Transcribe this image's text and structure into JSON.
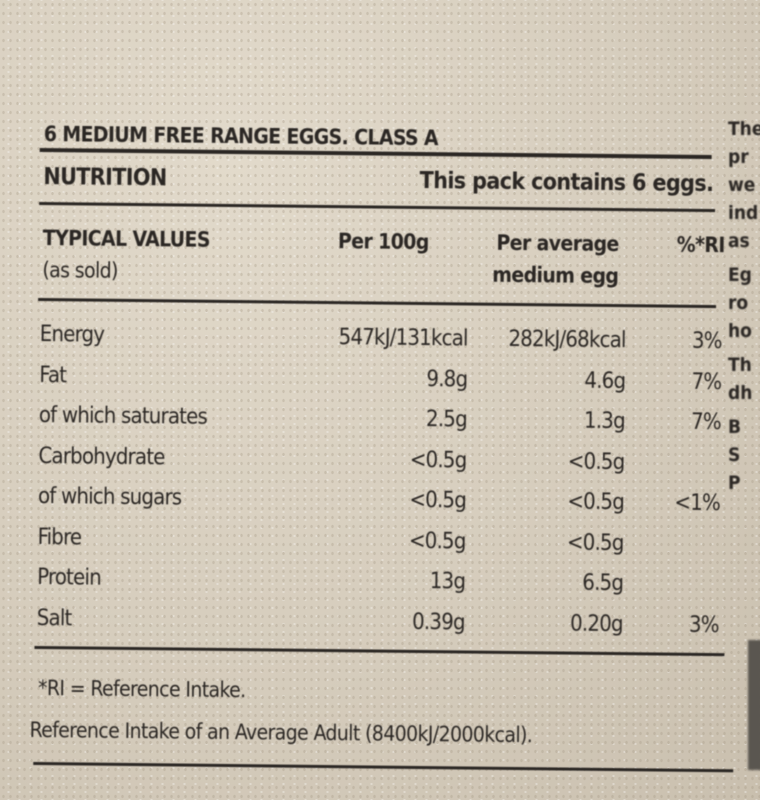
{
  "title": "6 MEDIUM FREE RANGE EGGS. CLASS A",
  "nutrition_label": "NUTRITION",
  "pack_note": "This pack contains 6 eggs.",
  "headers": {
    "typical": "TYPICAL VALUES",
    "as_sold": "(as sold)",
    "per100": "Per 100g",
    "per_egg_1": "Per average",
    "per_egg_2": "medium egg",
    "ri": "%*RI"
  },
  "rows": [
    {
      "name": "Energy",
      "per100": "547kJ/131kcal",
      "per_egg": "282kJ/68kcal",
      "ri": "3%"
    },
    {
      "name": "Fat",
      "per100": "9.8g",
      "per_egg": "4.6g",
      "ri": "7%"
    },
    {
      "name": "of which saturates",
      "per100": "2.5g",
      "per_egg": "1.3g",
      "ri": "7%"
    },
    {
      "name": "Carbohydrate",
      "per100": "<0.5g",
      "per_egg": "<0.5g",
      "ri": ""
    },
    {
      "name": "of which sugars",
      "per100": "<0.5g",
      "per_egg": "<0.5g",
      "ri": "<1%"
    },
    {
      "name": "Fibre",
      "per100": "<0.5g",
      "per_egg": "<0.5g",
      "ri": ""
    },
    {
      "name": "Protein",
      "per100": "13g",
      "per_egg": "6.5g",
      "ri": ""
    },
    {
      "name": "Salt",
      "per100": "0.39g",
      "per_egg": "0.20g",
      "ri": "3%"
    }
  ],
  "footnote_1": "*RI = Reference Intake.",
  "footnote_2": "Reference Intake of an Average Adult (8400kJ/2000kcal).",
  "edge_fragments": [
    "The",
    "pr",
    "we",
    "ind",
    "as",
    "Eg",
    "ro",
    "ho",
    "Th",
    "dh",
    "B",
    "S",
    "P"
  ]
}
